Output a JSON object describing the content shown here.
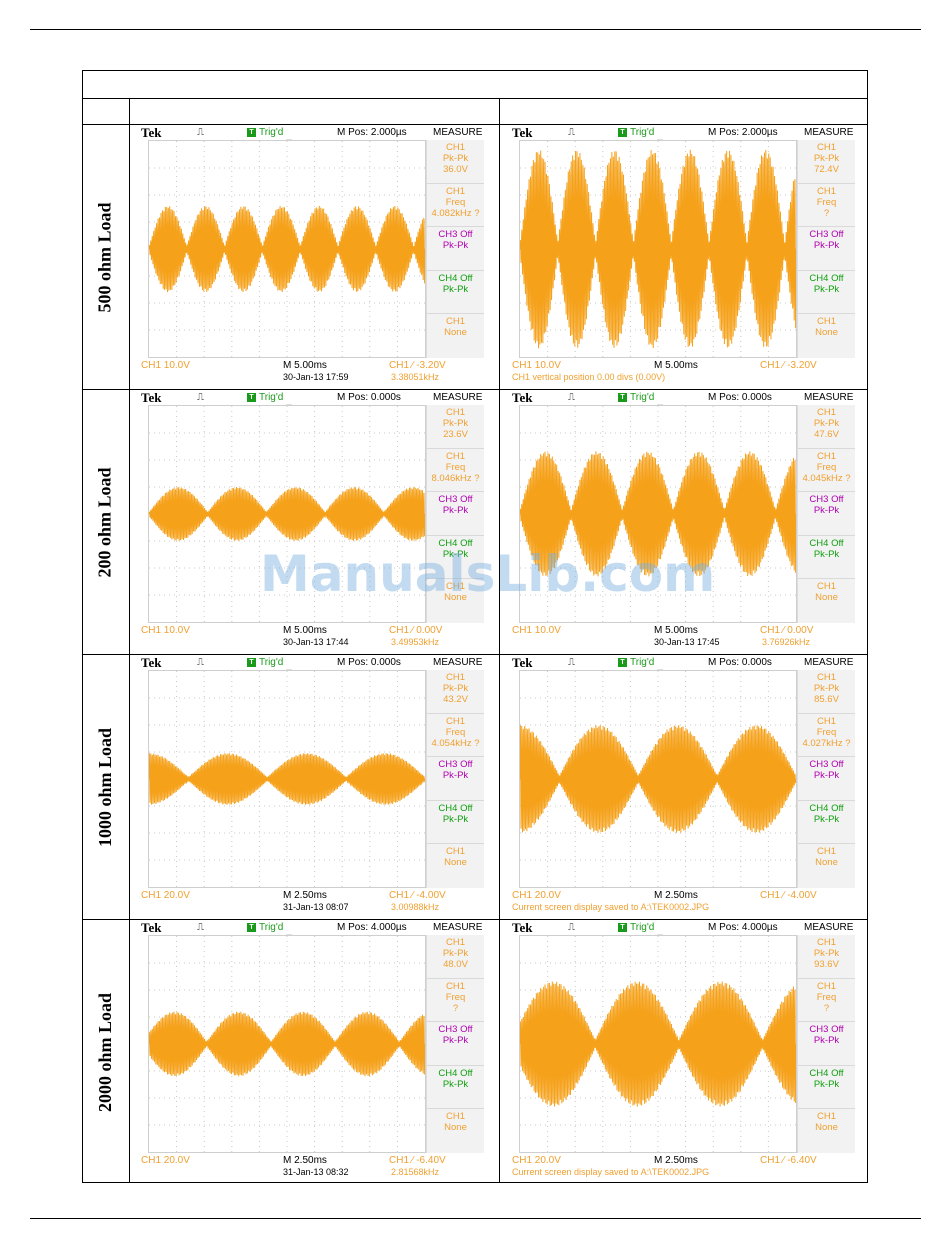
{
  "table": {
    "rows": [
      {
        "label": "500 ohm Load",
        "scopes": [
          {
            "brand": "Tek",
            "trigger": "Trig'd",
            "mpos": "M Pos: 2.000µs",
            "menu_title": "MEASURE",
            "measure": [
              {
                "lines": [
                  "CH1",
                  "Pk-Pk",
                  "36.0V"
                ],
                "color": "orange"
              },
              {
                "lines": [
                  "CH1",
                  "Freq",
                  "4.082kHz ?"
                ],
                "color": "orange"
              },
              {
                "lines": [
                  "CH3 Off",
                  "Pk-Pk"
                ],
                "color": "magenta"
              },
              {
                "lines": [
                  "CH4 Off",
                  "Pk-Pk"
                ],
                "color": "green"
              },
              {
                "lines": [
                  "CH1",
                  "None"
                ],
                "color": "orange"
              }
            ],
            "ch_scale": "CH1  10.0V",
            "timebase": "M 5.00ms",
            "trigger_level": "CH1  ∕  -3.20V",
            "datetime": "30-Jan-13 17:59",
            "freq": "3.38051kHz",
            "message": "",
            "waveform": {
              "amplitude": 0.4,
              "lobes": 7.3,
              "phase": 0.0
            }
          },
          {
            "brand": "Tek",
            "trigger": "Trig'd",
            "mpos": "M Pos: 2.000µs",
            "menu_title": "MEASURE",
            "measure": [
              {
                "lines": [
                  "CH1",
                  "Pk-Pk",
                  "72.4V"
                ],
                "color": "orange"
              },
              {
                "lines": [
                  "CH1",
                  "Freq",
                  "?"
                ],
                "color": "orange"
              },
              {
                "lines": [
                  "CH3 Off",
                  "Pk-Pk"
                ],
                "color": "magenta"
              },
              {
                "lines": [
                  "CH4 Off",
                  "Pk-Pk"
                ],
                "color": "green"
              },
              {
                "lines": [
                  "CH1",
                  "None"
                ],
                "color": "orange"
              }
            ],
            "ch_scale": "CH1  10.0V",
            "timebase": "M 5.00ms",
            "trigger_level": "CH1  ∕  -3.20V",
            "datetime": "",
            "freq": "",
            "message": "CH1 vertical position 0.00 divs (0.00V)",
            "waveform": {
              "amplitude": 0.92,
              "lobes": 7.3,
              "phase": 0.0
            }
          }
        ]
      },
      {
        "label": "200 ohm Load",
        "scopes": [
          {
            "brand": "Tek",
            "trigger": "Trig'd",
            "mpos": "M Pos: 0.000s",
            "menu_title": "MEASURE",
            "measure": [
              {
                "lines": [
                  "CH1",
                  "Pk-Pk",
                  "23.6V"
                ],
                "color": "orange"
              },
              {
                "lines": [
                  "CH1",
                  "Freq",
                  "8.046kHz ?"
                ],
                "color": "orange"
              },
              {
                "lines": [
                  "CH3 Off",
                  "Pk-Pk"
                ],
                "color": "magenta"
              },
              {
                "lines": [
                  "CH4 Off",
                  "Pk-Pk"
                ],
                "color": "green"
              },
              {
                "lines": [
                  "CH1",
                  "None"
                ],
                "color": "orange"
              }
            ],
            "ch_scale": "CH1  10.0V",
            "timebase": "M 5.00ms",
            "trigger_level": "CH1  ∕  0.00V",
            "datetime": "30-Jan-13 17:44",
            "freq": "3.49953kHz",
            "message": "",
            "waveform": {
              "amplitude": 0.25,
              "lobes": 4.7,
              "phase": 0.0
            }
          },
          {
            "brand": "Tek",
            "trigger": "Trig'd",
            "mpos": "M Pos: 0.000s",
            "menu_title": "MEASURE",
            "measure": [
              {
                "lines": [
                  "CH1",
                  "Pk-Pk",
                  "47.6V"
                ],
                "color": "orange"
              },
              {
                "lines": [
                  "CH1",
                  "Freq",
                  "4.045kHz ?"
                ],
                "color": "orange"
              },
              {
                "lines": [
                  "CH3 Off",
                  "Pk-Pk"
                ],
                "color": "magenta"
              },
              {
                "lines": [
                  "CH4 Off",
                  "Pk-Pk"
                ],
                "color": "green"
              },
              {
                "lines": [
                  "CH1",
                  "None"
                ],
                "color": "orange"
              }
            ],
            "ch_scale": "CH1  10.0V",
            "timebase": "M 5.00ms",
            "trigger_level": "CH1  ∕  0.00V",
            "datetime": "30-Jan-13 17:45",
            "freq": "3.76926kHz",
            "message": "",
            "waveform": {
              "amplitude": 0.58,
              "lobes": 5.4,
              "phase": 0.0
            }
          }
        ]
      },
      {
        "label": "1000 ohm Load",
        "scopes": [
          {
            "brand": "Tek",
            "trigger": "Trig'd",
            "mpos": "M Pos: 0.000s",
            "menu_title": "MEASURE",
            "measure": [
              {
                "lines": [
                  "CH1",
                  "Pk-Pk",
                  "43.2V"
                ],
                "color": "orange"
              },
              {
                "lines": [
                  "CH1",
                  "Freq",
                  "4.054kHz ?"
                ],
                "color": "orange"
              },
              {
                "lines": [
                  "CH3 Off",
                  "Pk-Pk"
                ],
                "color": "magenta"
              },
              {
                "lines": [
                  "CH4 Off",
                  "Pk-Pk"
                ],
                "color": "green"
              },
              {
                "lines": [
                  "CH1",
                  "None"
                ],
                "color": "orange"
              }
            ],
            "ch_scale": "CH1  20.0V",
            "timebase": "M 2.50ms",
            "trigger_level": "CH1  ∕  -4.00V",
            "datetime": "31-Jan-13 08:07",
            "freq": "3.00988kHz",
            "message": "",
            "waveform": {
              "amplitude": 0.24,
              "lobes": 3.5,
              "phase": 0.5
            }
          },
          {
            "brand": "Tek",
            "trigger": "Trig'd",
            "mpos": "M Pos: 0.000s",
            "menu_title": "MEASURE",
            "measure": [
              {
                "lines": [
                  "CH1",
                  "Pk-Pk",
                  "85.6V"
                ],
                "color": "orange"
              },
              {
                "lines": [
                  "CH1",
                  "Freq",
                  "4.027kHz ?"
                ],
                "color": "orange"
              },
              {
                "lines": [
                  "CH3 Off",
                  "Pk-Pk"
                ],
                "color": "magenta"
              },
              {
                "lines": [
                  "CH4 Off",
                  "Pk-Pk"
                ],
                "color": "green"
              },
              {
                "lines": [
                  "CH1",
                  "None"
                ],
                "color": "orange"
              }
            ],
            "ch_scale": "CH1  20.0V",
            "timebase": "M 2.50ms",
            "trigger_level": "CH1  ∕  -4.00V",
            "datetime": "",
            "freq": "",
            "message": "Current screen display saved to A:\\TEK0002.JPG",
            "waveform": {
              "amplitude": 0.5,
              "lobes": 3.5,
              "phase": 0.5
            }
          }
        ]
      },
      {
        "label": "2000 ohm Load",
        "scopes": [
          {
            "brand": "Tek",
            "trigger": "Trig'd",
            "mpos": "M Pos: 4.000µs",
            "menu_title": "MEASURE",
            "measure": [
              {
                "lines": [
                  "CH1",
                  "Pk-Pk",
                  "48.0V"
                ],
                "color": "orange"
              },
              {
                "lines": [
                  "CH1",
                  "Freq",
                  "?"
                ],
                "color": "orange"
              },
              {
                "lines": [
                  "CH3 Off",
                  "Pk-Pk"
                ],
                "color": "magenta"
              },
              {
                "lines": [
                  "CH4 Off",
                  "Pk-Pk"
                ],
                "color": "green"
              },
              {
                "lines": [
                  "CH1",
                  "None"
                ],
                "color": "orange"
              }
            ],
            "ch_scale": "CH1  20.0V",
            "timebase": "M 2.50ms",
            "trigger_level": "CH1  ∕  -6.40V",
            "datetime": "31-Jan-13 08:32",
            "freq": "2.81568kHz",
            "message": "",
            "waveform": {
              "amplitude": 0.3,
              "lobes": 4.3,
              "phase": 0.1
            }
          },
          {
            "brand": "Tek",
            "trigger": "Trig'd",
            "mpos": "M Pos: 4.000µs",
            "menu_title": "MEASURE",
            "measure": [
              {
                "lines": [
                  "CH1",
                  "Pk-Pk",
                  "93.6V"
                ],
                "color": "orange"
              },
              {
                "lines": [
                  "CH1",
                  "Freq",
                  "?"
                ],
                "color": "orange"
              },
              {
                "lines": [
                  "CH3 Off",
                  "Pk-Pk"
                ],
                "color": "magenta"
              },
              {
                "lines": [
                  "CH4 Off",
                  "Pk-Pk"
                ],
                "color": "green"
              },
              {
                "lines": [
                  "CH1",
                  "None"
                ],
                "color": "orange"
              }
            ],
            "ch_scale": "CH1  20.0V",
            "timebase": "M 2.50ms",
            "trigger_level": "CH1  ∕  -6.40V",
            "datetime": "",
            "freq": "",
            "message": "Current screen display saved to A:\\TEK0002.JPG",
            "waveform": {
              "amplitude": 0.58,
              "lobes": 3.3,
              "phase": 0.1
            }
          }
        ]
      }
    ]
  },
  "watermark": "ManualsLib.com",
  "colors": {
    "trace": "#f5a11a",
    "grid": "#c8c8c8",
    "orange_text": "#f0a030",
    "magenta_text": "#b000b0",
    "green_text": "#10a010"
  }
}
